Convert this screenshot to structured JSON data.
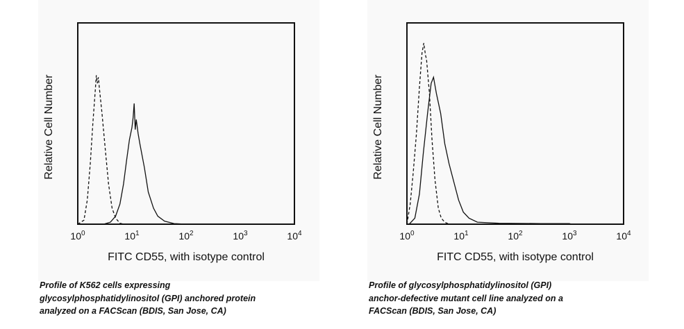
{
  "chart_data": [
    {
      "type": "line",
      "title": "",
      "xlabel": "FITC CD55, with isotype control",
      "ylabel": "Relative Cell Number",
      "xscale": "log",
      "xlim": [
        1,
        10000
      ],
      "ylim": [
        0,
        100
      ],
      "xticks": [
        {
          "base": "10",
          "exp": "0"
        },
        {
          "base": "10",
          "exp": "1"
        },
        {
          "base": "10",
          "exp": "2"
        },
        {
          "base": "10",
          "exp": "3"
        },
        {
          "base": "10",
          "exp": "4"
        }
      ],
      "series": [
        {
          "name": "isotype control",
          "style": "dashed",
          "points": [
            [
              1,
              0
            ],
            [
              1.3,
              2
            ],
            [
              1.5,
              12
            ],
            [
              1.7,
              30
            ],
            [
              1.9,
              50
            ],
            [
              2.1,
              66
            ],
            [
              2.2,
              74
            ],
            [
              2.3,
              70
            ],
            [
              2.4,
              73
            ],
            [
              2.5,
              68
            ],
            [
              2.8,
              55
            ],
            [
              3.2,
              38
            ],
            [
              3.7,
              20
            ],
            [
              4.3,
              8
            ],
            [
              5,
              3
            ],
            [
              6,
              0.5
            ],
            [
              7,
              0
            ]
          ]
        },
        {
          "name": "FITC CD55",
          "style": "solid",
          "points": [
            [
              3,
              0
            ],
            [
              4,
              1
            ],
            [
              5,
              4
            ],
            [
              6,
              10
            ],
            [
              7,
              20
            ],
            [
              8,
              32
            ],
            [
              9,
              42
            ],
            [
              10,
              48
            ],
            [
              10.5,
              53
            ],
            [
              11,
              60
            ],
            [
              11.5,
              47
            ],
            [
              12,
              52
            ],
            [
              13,
              45
            ],
            [
              14,
              40
            ],
            [
              17,
              28
            ],
            [
              20,
              16
            ],
            [
              25,
              8
            ],
            [
              30,
              4
            ],
            [
              40,
              1.5
            ],
            [
              60,
              0.3
            ],
            [
              100,
              0
            ]
          ]
        }
      ],
      "caption": [
        "Profile of K562 cells expressing",
        "glycosylphosphatidylinositol (GPI) anchored protein",
        "analyzed on a FACScan (BDIS, San Jose, CA)"
      ]
    },
    {
      "type": "line",
      "title": "",
      "xlabel": "FITC CD55, with isotype control",
      "ylabel": "Relative Cell Number",
      "xscale": "log",
      "xlim": [
        1,
        10000
      ],
      "ylim": [
        0,
        100
      ],
      "xticks": [
        {
          "base": "10",
          "exp": "0"
        },
        {
          "base": "10",
          "exp": "1"
        },
        {
          "base": "10",
          "exp": "2"
        },
        {
          "base": "10",
          "exp": "3"
        },
        {
          "base": "10",
          "exp": "4"
        }
      ],
      "series": [
        {
          "name": "isotype control",
          "style": "dashed",
          "points": [
            [
              1,
              0
            ],
            [
              1.15,
              10
            ],
            [
              1.3,
              25
            ],
            [
              1.5,
              45
            ],
            [
              1.7,
              68
            ],
            [
              1.9,
              85
            ],
            [
              2.05,
              90
            ],
            [
              2.2,
              84
            ],
            [
              2.3,
              82
            ],
            [
              2.6,
              65
            ],
            [
              2.9,
              42
            ],
            [
              3.3,
              22
            ],
            [
              3.8,
              8
            ],
            [
              4.3,
              3
            ],
            [
              5,
              1
            ],
            [
              6,
              0
            ]
          ]
        },
        {
          "name": "FITC CD55",
          "style": "solid",
          "points": [
            [
              1.1,
              0
            ],
            [
              1.4,
              3
            ],
            [
              1.7,
              15
            ],
            [
              2,
              35
            ],
            [
              2.4,
              55
            ],
            [
              2.8,
              70
            ],
            [
              3.1,
              73
            ],
            [
              3.5,
              65
            ],
            [
              4.2,
              55
            ],
            [
              5,
              40
            ],
            [
              6,
              30
            ],
            [
              7.5,
              20
            ],
            [
              9,
              12
            ],
            [
              11,
              6
            ],
            [
              14,
              3
            ],
            [
              20,
              1
            ],
            [
              50,
              0.5
            ],
            [
              300,
              0.3
            ],
            [
              1000,
              0.3
            ],
            [
              1100,
              0
            ]
          ]
        }
      ],
      "caption": [
        "Profile of glycosylphosphatidylinositol (GPI)",
        "anchor-defective mutant cell line analyzed on a",
        "FACScan (BDIS, San Jose, CA)"
      ]
    }
  ]
}
